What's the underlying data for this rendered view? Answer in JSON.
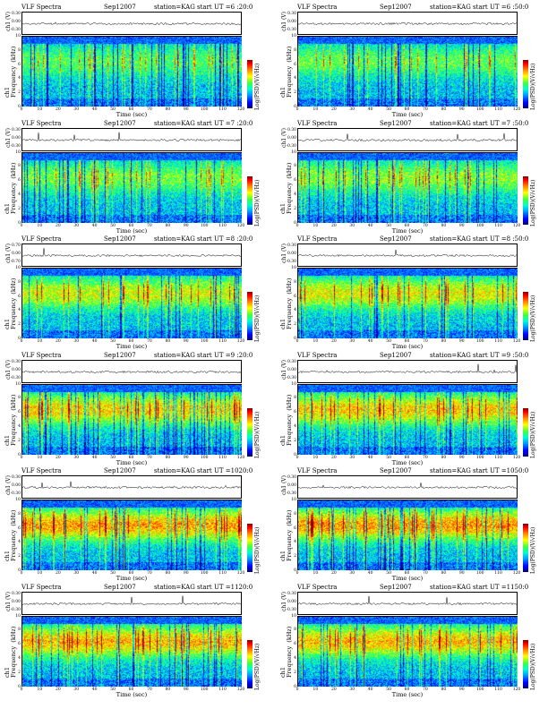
{
  "chart_data": [
    {
      "type": "heatmap",
      "title": "VLF Spectra",
      "date": "Sep12007",
      "station": "station=KAG",
      "start": "start  UT  =6 :20:0",
      "ts_label": "ch1 (V)",
      "ts_ticks": [
        "0.30",
        "0.00",
        "-0.30"
      ],
      "ylabel": "ch1\nFrequency  (kHz)",
      "y_ticks": [
        "10",
        "8",
        "6",
        "4",
        "2",
        "0"
      ],
      "xlabel": "Time  (sec)",
      "x_ticks": [
        "0",
        "10",
        "20",
        "30",
        "40",
        "50",
        "60",
        "70",
        "80",
        "90",
        "100",
        "110",
        "120"
      ],
      "xlim": [
        0,
        120
      ],
      "ylim": [
        0,
        10
      ],
      "cbar_label": "Log(PSD)(V/√Hz)",
      "intensity": 0.35
    },
    {
      "type": "heatmap",
      "title": "VLF Spectra",
      "date": "Sep12007",
      "station": "station=KAG",
      "start": "start  UT  =6 :50:0",
      "ts_label": "ch1 (V)",
      "ts_ticks": [
        "0.30",
        "0.00",
        "-0.30"
      ],
      "ylabel": "ch1\nFrequency  (kHz)",
      "y_ticks": [
        "10",
        "8",
        "6",
        "4",
        "2",
        "0"
      ],
      "xlabel": "Time  (sec)",
      "x_ticks": [
        "0",
        "10",
        "20",
        "30",
        "40",
        "50",
        "60",
        "70",
        "80",
        "90",
        "100",
        "110",
        "120"
      ],
      "xlim": [
        0,
        120
      ],
      "ylim": [
        0,
        10
      ],
      "cbar_label": "Log(PSD)(V/√Hz)",
      "intensity": 0.38
    },
    {
      "type": "heatmap",
      "title": "VLF Spectra",
      "date": "Sep12007",
      "station": "station=KAG",
      "start": "start  UT  =7 :20:0",
      "ts_label": "ch1 (V)",
      "ts_ticks": [
        "0.30",
        "0.00",
        "-0.30"
      ],
      "ylabel": "ch1\nFrequency  (kHz)",
      "y_ticks": [
        "10",
        "8",
        "6",
        "4",
        "2",
        "0"
      ],
      "xlabel": "Time  (sec)",
      "x_ticks": [
        "0",
        "10",
        "20",
        "30",
        "40",
        "50",
        "60",
        "70",
        "80",
        "90",
        "100",
        "110",
        "120"
      ],
      "xlim": [
        0,
        120
      ],
      "ylim": [
        0,
        10
      ],
      "cbar_label": "Log(PSD)(V/√Hz)",
      "intensity": 0.42
    },
    {
      "type": "heatmap",
      "title": "VLF Spectra",
      "date": "Sep12007",
      "station": "station=KAG",
      "start": "start  UT  =7 :50:0",
      "ts_label": "ch1 (V)",
      "ts_ticks": [
        "0.30",
        "0.00",
        "-0.30"
      ],
      "ylabel": "ch1\nFrequency  (kHz)",
      "y_ticks": [
        "10",
        "8",
        "6",
        "4",
        "2",
        "0"
      ],
      "xlabel": "Time  (sec)",
      "x_ticks": [
        "0",
        "10",
        "20",
        "30",
        "40",
        "50",
        "60",
        "70",
        "80",
        "90",
        "100",
        "110",
        "120"
      ],
      "xlim": [
        0,
        120
      ],
      "ylim": [
        0,
        10
      ],
      "cbar_label": "Log(PSD)(V/√Hz)",
      "intensity": 0.46
    },
    {
      "type": "heatmap",
      "title": "VLF Spectra",
      "date": "Sep12007",
      "station": "station=KAG",
      "start": "start  UT  =8 :20:0",
      "ts_label": "ch1 (V)",
      "ts_ticks": [
        "0.70",
        "0.00",
        "-0.70"
      ],
      "ylabel": "ch1\nFrequency  (kHz)",
      "y_ticks": [
        "10",
        "8",
        "6",
        "4",
        "2",
        "0"
      ],
      "xlabel": "Time  (sec)",
      "x_ticks": [
        "0",
        "10",
        "20",
        "30",
        "40",
        "50",
        "60",
        "70",
        "80",
        "90",
        "100",
        "110",
        "120"
      ],
      "xlim": [
        0,
        120
      ],
      "ylim": [
        0,
        10
      ],
      "cbar_label": "Log(PSD)(V/√Hz)",
      "intensity": 0.58
    },
    {
      "type": "heatmap",
      "title": "VLF Spectra",
      "date": "Sep12007",
      "station": "station=KAG",
      "start": "start  UT  =8 :50:0",
      "ts_label": "ch1 (V)",
      "ts_ticks": [
        "0.30",
        "0.00",
        "-0.30"
      ],
      "ylabel": "ch1\nFrequency  (kHz)",
      "y_ticks": [
        "10",
        "8",
        "6",
        "4",
        "2",
        "0"
      ],
      "xlabel": "Time  (sec)",
      "x_ticks": [
        "0",
        "10",
        "20",
        "30",
        "40",
        "50",
        "60",
        "70",
        "80",
        "90",
        "100",
        "110",
        "120"
      ],
      "xlim": [
        0,
        120
      ],
      "ylim": [
        0,
        10
      ],
      "cbar_label": "Log(PSD)(V/√Hz)",
      "intensity": 0.62
    },
    {
      "type": "heatmap",
      "title": "VLF Spectra",
      "date": "Sep12007",
      "station": "station=KAG",
      "start": "start  UT  =9 :20:0",
      "ts_label": "ch1 (V)",
      "ts_ticks": [
        "0.30",
        "0.00",
        "-0.30"
      ],
      "ylabel": "ch1\nFrequency  (kHz)",
      "y_ticks": [
        "10",
        "8",
        "6",
        "4",
        "2",
        "0"
      ],
      "xlabel": "Time  (sec)",
      "x_ticks": [
        "0",
        "10",
        "20",
        "30",
        "40",
        "50",
        "60",
        "70",
        "80",
        "90",
        "100",
        "110",
        "120"
      ],
      "xlim": [
        0,
        120
      ],
      "ylim": [
        0,
        10
      ],
      "cbar_label": "Log(PSD)(V/√Hz)",
      "intensity": 0.7
    },
    {
      "type": "heatmap",
      "title": "VLF Spectra",
      "date": "Sep12007",
      "station": "station=KAG",
      "start": "start  UT  =9 :50:0",
      "ts_label": "ch1 (V)",
      "ts_ticks": [
        "0.30",
        "0.00",
        "-0.30"
      ],
      "ylabel": "ch1\nFrequency  (kHz)",
      "y_ticks": [
        "10",
        "8",
        "6",
        "4",
        "2",
        "0"
      ],
      "xlabel": "Time  (sec)",
      "x_ticks": [
        "0",
        "10",
        "20",
        "30",
        "40",
        "50",
        "60",
        "70",
        "80",
        "90",
        "100",
        "110",
        "120"
      ],
      "xlim": [
        0,
        120
      ],
      "ylim": [
        0,
        10
      ],
      "cbar_label": "Log(PSD)(V/√Hz)",
      "intensity": 0.72
    },
    {
      "type": "heatmap",
      "title": "VLF Spectra",
      "date": "Sep12007",
      "station": "station=KAG",
      "start": "start  UT  =1020:0",
      "ts_label": "ch1 (V)",
      "ts_ticks": [
        "0.30",
        "0.00",
        "-0.30"
      ],
      "ylabel": "ch1\nFrequency  (kHz)",
      "y_ticks": [
        "10",
        "8",
        "6",
        "4",
        "2",
        "0"
      ],
      "xlabel": "Time  (sec)",
      "x_ticks": [
        "0",
        "10",
        "20",
        "30",
        "40",
        "50",
        "60",
        "70",
        "80",
        "90",
        "100",
        "110",
        "120"
      ],
      "xlim": [
        0,
        120
      ],
      "ylim": [
        0,
        10
      ],
      "cbar_label": "Log(PSD)(V/√Hz)",
      "intensity": 0.8
    },
    {
      "type": "heatmap",
      "title": "VLF Spectra",
      "date": "Sep12007",
      "station": "station=KAG",
      "start": "start  UT  =1050:0",
      "ts_label": "ch1 (V)",
      "ts_ticks": [
        "0.30",
        "0.00",
        "-0.30"
      ],
      "ylabel": "ch1\nFrequency  (kHz)",
      "y_ticks": [
        "10",
        "8",
        "6",
        "4",
        "2",
        "0"
      ],
      "xlabel": "Time  (sec)",
      "x_ticks": [
        "0",
        "10",
        "20",
        "30",
        "40",
        "50",
        "60",
        "70",
        "80",
        "90",
        "100",
        "110",
        "120"
      ],
      "xlim": [
        0,
        120
      ],
      "ylim": [
        0,
        10
      ],
      "cbar_label": "Log(PSD)(V/√Hz)",
      "intensity": 0.82
    },
    {
      "type": "heatmap",
      "title": "VLF Spectra",
      "date": "Sep12007",
      "station": "station=KAG",
      "start": "start  UT  =1120:0",
      "ts_label": "ch1 (V)",
      "ts_ticks": [
        "0.30",
        "0.00",
        "-0.30"
      ],
      "ylabel": "ch1\nFrequency  (kHz)",
      "y_ticks": [
        "10",
        "8",
        "6",
        "4",
        "2",
        "0"
      ],
      "xlabel": "Time  (sec)",
      "x_ticks": [
        "0",
        "10",
        "20",
        "30",
        "40",
        "50",
        "60",
        "70",
        "80",
        "90",
        "100",
        "110",
        "120"
      ],
      "xlim": [
        0,
        120
      ],
      "ylim": [
        0,
        10
      ],
      "cbar_label": "Log(PSD)(V/√Hz)",
      "intensity": 0.76
    },
    {
      "type": "heatmap",
      "title": "VLF Spectra",
      "date": "Sep12007",
      "station": "station=KAG",
      "start": "start  UT  =1150:0",
      "ts_label": "ch1 (V)",
      "ts_ticks": [
        "0.30",
        "0.00",
        "-0.30"
      ],
      "ylabel": "ch1\nFrequency  (kHz)",
      "y_ticks": [
        "10",
        "8",
        "6",
        "4",
        "2",
        "0"
      ],
      "xlabel": "Time  (sec)",
      "x_ticks": [
        "0",
        "10",
        "20",
        "30",
        "40",
        "50",
        "60",
        "70",
        "80",
        "90",
        "100",
        "110",
        "120"
      ],
      "xlim": [
        0,
        120
      ],
      "ylim": [
        0,
        10
      ],
      "cbar_label": "Log(PSD)(V/√Hz)",
      "intensity": 0.74
    }
  ]
}
